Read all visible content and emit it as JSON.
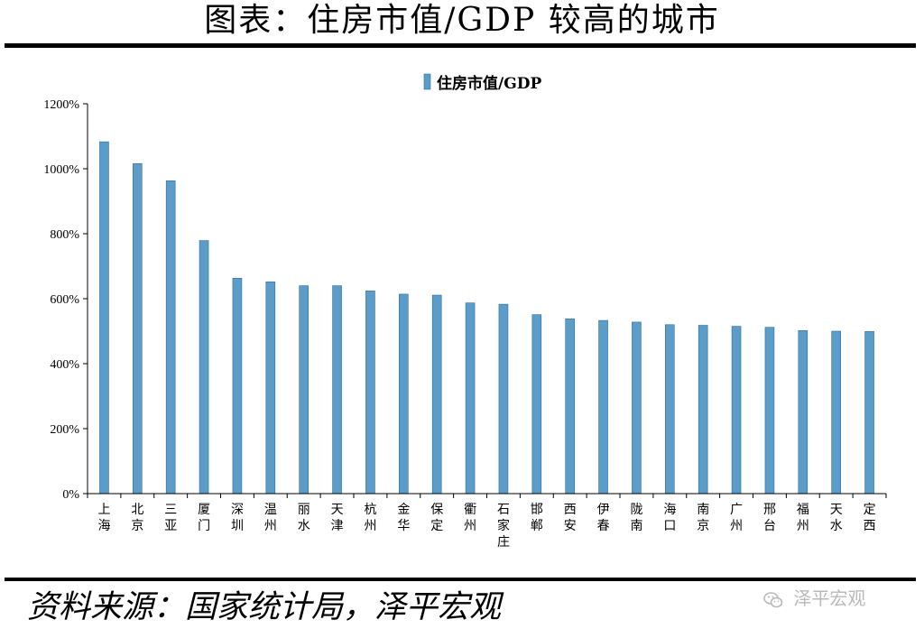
{
  "page": {
    "title": "图表：住房市值/GDP 较高的城市",
    "source": "资料来源：国家统计局，泽平宏观",
    "watermark": "泽平宏观",
    "watermark_icon": "wechat-icon"
  },
  "colors": {
    "bar_fill": "#5b9cc8",
    "bar_edge": "#2f6f9f",
    "rule": "#000000",
    "watermark": "#b9b9b9"
  },
  "chart_data": {
    "type": "bar",
    "title": "",
    "xlabel": "",
    "ylabel": "",
    "ylim": [
      0,
      1200
    ],
    "ytick_values": [
      0,
      200,
      400,
      600,
      800,
      1000,
      1200
    ],
    "ytick_labels": [
      "0%",
      "200%",
      "400%",
      "600%",
      "800%",
      "1000%",
      "1200%"
    ],
    "grid": false,
    "legend_position": "top-center",
    "categories": [
      "上海",
      "北京",
      "三亚",
      "厦门",
      "深圳",
      "温州",
      "丽水",
      "天津",
      "杭州",
      "金华",
      "保定",
      "衢州",
      "石家庄",
      "邯郸",
      "西安",
      "伊春",
      "陇南",
      "海口",
      "南京",
      "广州",
      "邢台",
      "福州",
      "天水",
      "定西"
    ],
    "series": [
      {
        "name": "住房市值/GDP",
        "values": [
          1083,
          1016,
          963,
          779,
          663,
          652,
          640,
          640,
          624,
          614,
          611,
          587,
          583,
          551,
          538,
          533,
          528,
          520,
          518,
          515,
          512,
          502,
          500,
          499
        ]
      }
    ]
  }
}
